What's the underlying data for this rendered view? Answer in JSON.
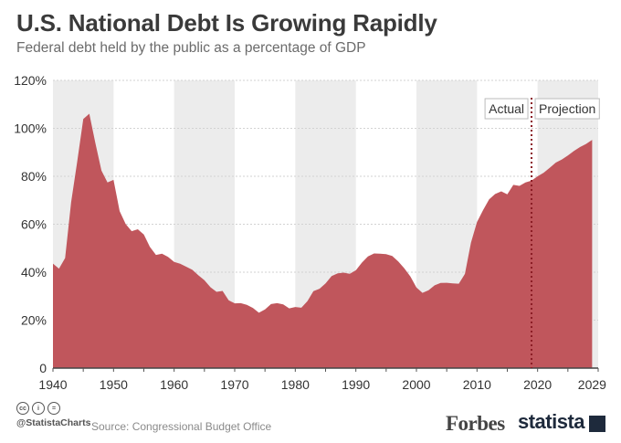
{
  "header": {
    "title": "U.S. National Debt Is Growing Rapidly",
    "subtitle": "Federal debt held by the public as a percentage of GDP"
  },
  "footer": {
    "cc_icons": [
      "cc",
      "i",
      "="
    ],
    "handle": "@StatistaCharts",
    "source": "Source: Congressional Budget Office",
    "brand_forbes": "Forbes",
    "brand_statista": "statista"
  },
  "colors": {
    "area": "#c0565c",
    "band": "#ececec",
    "divider": "#8b1c24",
    "text": "#3a3a3a"
  },
  "chart_data": {
    "type": "area",
    "x_ticks": [
      1940,
      1950,
      1960,
      1970,
      1980,
      1990,
      2000,
      2010,
      2020,
      2029
    ],
    "y_ticks": [
      0,
      20,
      40,
      60,
      80,
      100,
      120
    ],
    "y_tick_labels": [
      "0",
      "20%",
      "40%",
      "60%",
      "80%",
      "100%",
      "120%"
    ],
    "xlim": [
      1940,
      2030
    ],
    "ylim": [
      0,
      120
    ],
    "annotations": {
      "actual": "Actual",
      "projection": "Projection",
      "divider_year": 2019
    },
    "x": [
      1940,
      1941,
      1942,
      1943,
      1944,
      1945,
      1946,
      1947,
      1948,
      1949,
      1950,
      1951,
      1952,
      1953,
      1954,
      1955,
      1956,
      1957,
      1958,
      1959,
      1960,
      1961,
      1962,
      1963,
      1964,
      1965,
      1966,
      1967,
      1968,
      1969,
      1970,
      1971,
      1972,
      1973,
      1974,
      1975,
      1976,
      1977,
      1978,
      1979,
      1980,
      1981,
      1982,
      1983,
      1984,
      1985,
      1986,
      1987,
      1988,
      1989,
      1990,
      1991,
      1992,
      1993,
      1994,
      1995,
      1996,
      1997,
      1998,
      1999,
      2000,
      2001,
      2002,
      2003,
      2004,
      2005,
      2006,
      2007,
      2008,
      2009,
      2010,
      2011,
      2012,
      2013,
      2014,
      2015,
      2016,
      2017,
      2018,
      2019,
      2020,
      2021,
      2022,
      2023,
      2024,
      2025,
      2026,
      2027,
      2028,
      2029
    ],
    "y": [
      43.6,
      41.5,
      45.9,
      69.2,
      86.0,
      103.9,
      106.1,
      93.9,
      82.4,
      77.4,
      78.5,
      65.5,
      60.1,
      57.1,
      57.9,
      55.7,
      50.6,
      47.2,
      47.7,
      46.4,
      44.3,
      43.5,
      42.3,
      41.0,
      38.7,
      36.7,
      33.7,
      31.8,
      32.2,
      28.3,
      27.0,
      27.1,
      26.4,
      25.1,
      23.1,
      24.5,
      26.7,
      27.1,
      26.6,
      24.9,
      25.5,
      25.2,
      27.9,
      32.1,
      33.1,
      35.3,
      38.4,
      39.5,
      39.8,
      39.3,
      40.8,
      44.0,
      46.6,
      47.8,
      47.7,
      47.5,
      46.8,
      44.5,
      41.6,
      38.2,
      33.6,
      31.4,
      32.5,
      34.5,
      35.5,
      35.6,
      35.3,
      35.2,
      39.3,
      52.3,
      60.9,
      65.9,
      70.4,
      72.6,
      73.7,
      72.5,
      76.4,
      76.0,
      77.4,
      78.2,
      80.0,
      81.5,
      83.5,
      85.7,
      87.0,
      88.7,
      90.6,
      92.2,
      93.5,
      95.2
    ]
  }
}
